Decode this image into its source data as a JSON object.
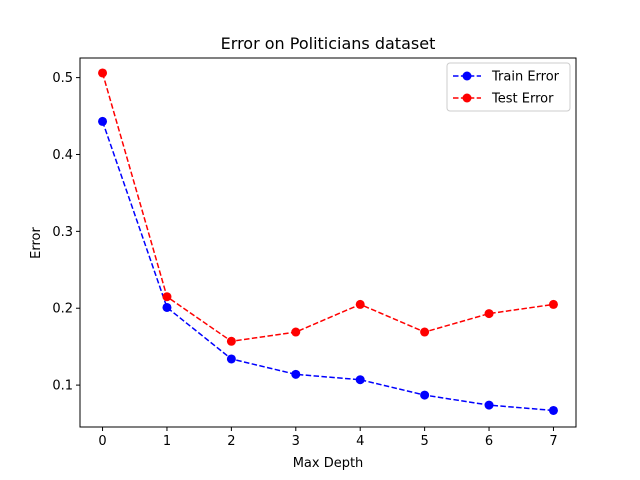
{
  "chart_data": {
    "type": "line",
    "title": "Error on Politicians dataset",
    "xlabel": "Max Depth",
    "ylabel": "Error",
    "x": [
      0,
      1,
      2,
      3,
      4,
      5,
      6,
      7
    ],
    "xticks": [
      "0",
      "1",
      "2",
      "3",
      "4",
      "5",
      "6",
      "7"
    ],
    "yticks": [
      "0.1",
      "0.2",
      "0.3",
      "0.4",
      "0.5"
    ],
    "xlim": [
      -0.35,
      7.35
    ],
    "ylim": [
      0.0455,
      0.5255
    ],
    "grid": false,
    "legend_position": "top-right",
    "series": [
      {
        "name": "Train Error",
        "color": "#0000ff",
        "linestyle": "dashed",
        "marker": "circle",
        "values": [
          0.443,
          0.201,
          0.134,
          0.114,
          0.107,
          0.087,
          0.074,
          0.067
        ]
      },
      {
        "name": "Test Error",
        "color": "#ff0000",
        "linestyle": "dashed",
        "marker": "circle",
        "values": [
          0.506,
          0.215,
          0.157,
          0.169,
          0.205,
          0.169,
          0.193,
          0.205
        ]
      }
    ]
  }
}
